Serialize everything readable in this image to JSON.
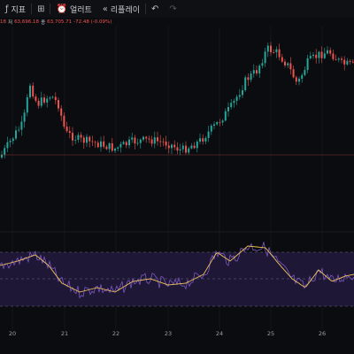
{
  "toolbar": {
    "indicators_label": "지표",
    "alert_label": "얼러트",
    "replay_label": "리플레이",
    "indicators_icon": "fx-icon",
    "layout_icon": "grid-icon",
    "alert_icon": "alarm-clock-icon",
    "replay_icon": "rewind-icon",
    "undo_icon": "undo-arrow-icon",
    "redo_icon": "redo-arrow-icon"
  },
  "ohlc": {
    "open_tail": "18",
    "low_label": "저",
    "low_value": "63,696.18",
    "close_label": "종",
    "close_value": "63,705.71",
    "change": "-72.48 (-0.09%)"
  },
  "chart_data": {
    "type": "line",
    "description_series": [
      {
        "name": "price_close",
        "x": [
          "20",
          "20.5",
          "21",
          "21.5",
          "22",
          "22.5",
          "23",
          "23.5",
          "24",
          "24.5",
          "25",
          "25.5",
          "26",
          "26.5"
        ],
        "values": [
          63500,
          64400,
          63900,
          63600,
          63700,
          63650,
          63600,
          63900,
          64300,
          64700,
          64600,
          64750,
          64650,
          64700
        ]
      },
      {
        "name": "rsi",
        "x": [
          "20",
          "20.5",
          "21",
          "21.5",
          "22",
          "22.5",
          "23",
          "23.5",
          "24",
          "24.5",
          "25",
          "25.5",
          "26",
          "26.5"
        ],
        "values": [
          60,
          62,
          45,
          38,
          42,
          48,
          44,
          50,
          64,
          70,
          55,
          48,
          52,
          46
        ]
      }
    ],
    "xlabel": "",
    "ylabel": "",
    "x_ticks": [
      "20",
      "21",
      "22",
      "23",
      "24",
      "25",
      "26"
    ],
    "colors": {
      "up": "#26a69a",
      "down": "#ef5350",
      "rsi": "#7e57c2",
      "rsi_ma": "#f0c35b",
      "band": "#1e1836"
    },
    "grid": true,
    "rsi_levels": [
      70,
      50,
      30
    ]
  }
}
